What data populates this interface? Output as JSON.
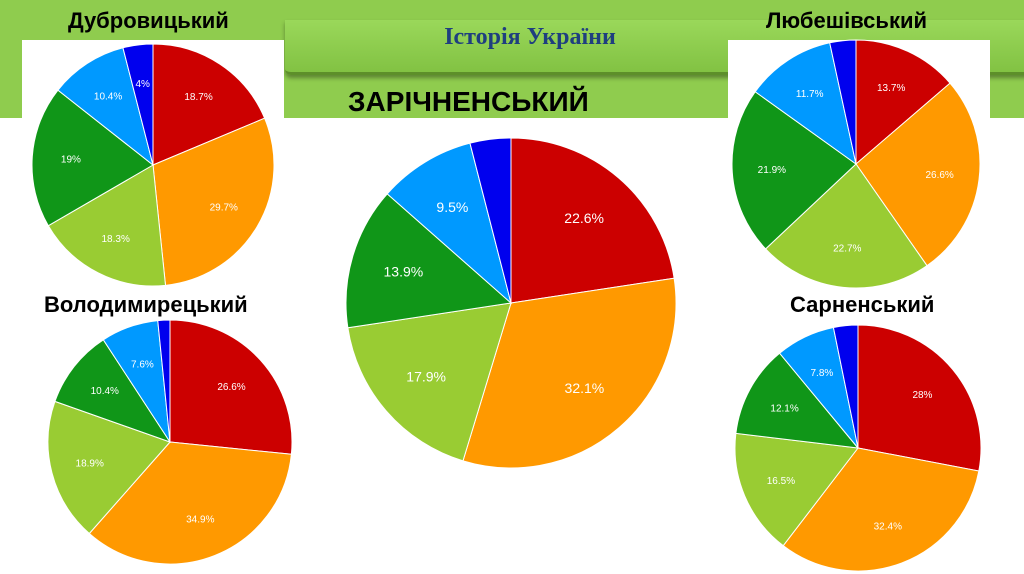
{
  "header": {
    "title": "Історія України"
  },
  "colors": {
    "band": "#8fcc4e",
    "slices": [
      "#cc0000",
      "#ff9900",
      "#99cc33",
      "#109618",
      "#0099ff",
      "#0000ee"
    ]
  },
  "chart_data": [
    {
      "type": "pie",
      "title": "Дубровицький",
      "slices": [
        {
          "value": 18.7,
          "label": "18.7%",
          "color": "#cc0000"
        },
        {
          "value": 29.7,
          "label": "29.7%",
          "color": "#ff9900"
        },
        {
          "value": 18.3,
          "label": "18.3%",
          "color": "#99cc33"
        },
        {
          "value": 19.0,
          "label": "19%",
          "color": "#109618"
        },
        {
          "value": 10.4,
          "label": "10.4%",
          "color": "#0099ff"
        },
        {
          "value": 4.0,
          "label": "4%",
          "color": "#0000ee"
        }
      ]
    },
    {
      "type": "pie",
      "title": "ЗАРІЧНЕНСЬКИЙ",
      "slices": [
        {
          "value": 22.6,
          "label": "22.6%",
          "color": "#cc0000"
        },
        {
          "value": 32.1,
          "label": "32.1%",
          "color": "#ff9900"
        },
        {
          "value": 17.9,
          "label": "17.9%",
          "color": "#99cc33"
        },
        {
          "value": 13.9,
          "label": "13.9%",
          "color": "#109618"
        },
        {
          "value": 9.5,
          "label": "9.5%",
          "color": "#0099ff"
        },
        {
          "value": 4.0,
          "label": "",
          "color": "#0000ee"
        }
      ]
    },
    {
      "type": "pie",
      "title": "Любешівський",
      "slices": [
        {
          "value": 13.7,
          "label": "13.7%",
          "color": "#cc0000"
        },
        {
          "value": 26.6,
          "label": "26.6%",
          "color": "#ff9900"
        },
        {
          "value": 22.7,
          "label": "22.7%",
          "color": "#99cc33"
        },
        {
          "value": 21.9,
          "label": "21.9%",
          "color": "#109618"
        },
        {
          "value": 11.7,
          "label": "11.7%",
          "color": "#0099ff"
        },
        {
          "value": 3.4,
          "label": "",
          "color": "#0000ee"
        }
      ]
    },
    {
      "type": "pie",
      "title": "Володимирецький",
      "slices": [
        {
          "value": 26.6,
          "label": "26.6%",
          "color": "#cc0000"
        },
        {
          "value": 34.9,
          "label": "34.9%",
          "color": "#ff9900"
        },
        {
          "value": 18.9,
          "label": "18.9%",
          "color": "#99cc33"
        },
        {
          "value": 10.4,
          "label": "10.4%",
          "color": "#109618"
        },
        {
          "value": 7.6,
          "label": "7.6%",
          "color": "#0099ff"
        },
        {
          "value": 1.6,
          "label": "",
          "color": "#0000ee"
        }
      ]
    },
    {
      "type": "pie",
      "title": "Сарненський",
      "slices": [
        {
          "value": 28.0,
          "label": "28%",
          "color": "#cc0000"
        },
        {
          "value": 32.4,
          "label": "32.4%",
          "color": "#ff9900"
        },
        {
          "value": 16.5,
          "label": "16.5%",
          "color": "#99cc33"
        },
        {
          "value": 12.1,
          "label": "12.1%",
          "color": "#109618"
        },
        {
          "value": 7.8,
          "label": "7.8%",
          "color": "#0099ff"
        },
        {
          "value": 3.2,
          "label": "",
          "color": "#0000ee"
        }
      ]
    }
  ]
}
